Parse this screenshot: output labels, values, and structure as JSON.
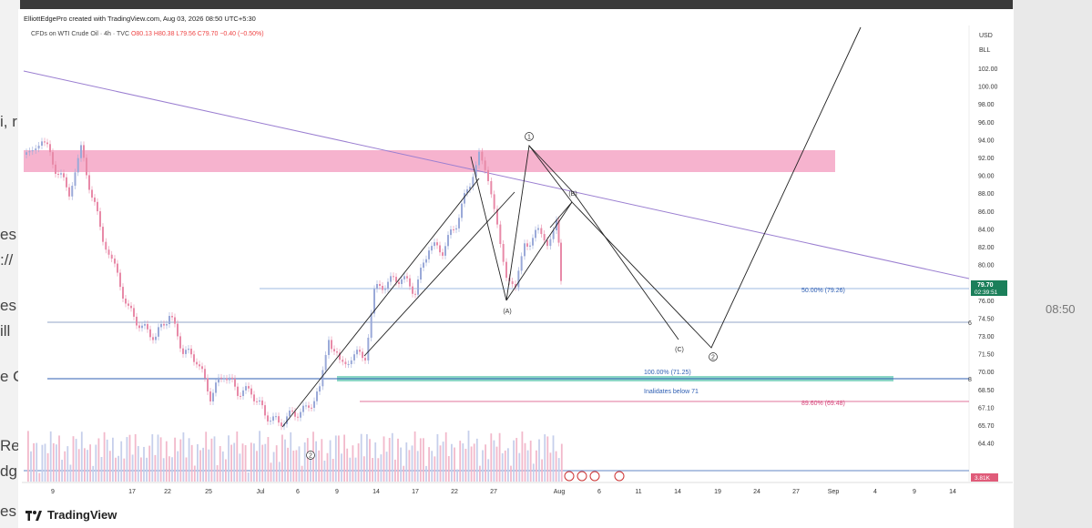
{
  "header": {
    "created_by": "ElliottEdgePro created with TradingView.com, Aug 03, 2026 08:50 UTC+5:30"
  },
  "legend": {
    "symbol": "CFDs on WTI Crude Oil · 4h · TVC",
    "open": "O80.13",
    "high": "H80.38",
    "low": "L79.56",
    "close": "C79.70",
    "change": "−0.40 (−0.50%)"
  },
  "price_axis": {
    "currency": "USD",
    "unit": "BLL",
    "ticks": [
      "102.00",
      "100.00",
      "98.00",
      "96.00",
      "94.00",
      "92.00",
      "90.00",
      "88.00",
      "86.00",
      "84.00",
      "82.00",
      "80.00",
      "78.00",
      "76.00",
      "74.50",
      "73.00",
      "71.50",
      "70.00",
      "68.50",
      "67.10",
      "65.70",
      "64.40"
    ],
    "current_price": "79.70",
    "countdown": "02:39:51",
    "volume_badge": "3.81K"
  },
  "time_axis": {
    "ticks": [
      "9",
      "17",
      "22",
      "25",
      "Jul",
      "6",
      "9",
      "14",
      "17",
      "22",
      "27",
      "Aug",
      "6",
      "11",
      "14",
      "19",
      "24",
      "27",
      "Sep",
      "4",
      "9",
      "14"
    ]
  },
  "annotations": {
    "fib_50": "50.00% (79.26)",
    "fib_100": "100.00% (71.25)",
    "fib_89": "89.60% (69.48)",
    "invalidation": "Inalidates below 71",
    "wave_1": "1",
    "wave_2": "2",
    "wave_2_low": "2",
    "wave_a": "(A)",
    "wave_b": "(B)",
    "wave_c": "(C)",
    "line_label_6": "6",
    "line_label_8": "8"
  },
  "background": {
    "left_fragments": [
      "i, r",
      "es",
      "://",
      "es",
      "ill",
      "e C",
      "Re",
      "dg",
      "es"
    ],
    "right_fragments": [
      "08:50"
    ]
  },
  "footer": {
    "brand": "TradingView"
  },
  "colors": {
    "resistance_zone": "#f4a6c6",
    "support_zone": "#7fd3c0",
    "trendline": "#9b7fd1",
    "fib_blue": "#2f5fb3",
    "fib_pink": "#d6457a",
    "bull_candle": "#9aa9d8",
    "bear_candle": "#e88aa8",
    "price_badge": "#1b7f5a"
  }
}
